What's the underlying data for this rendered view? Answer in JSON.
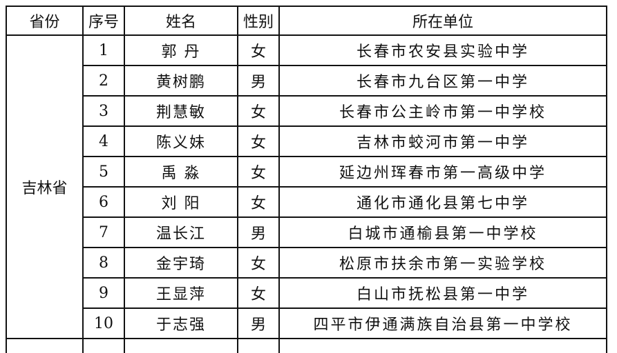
{
  "headers": [
    "省份",
    "序号",
    "姓名",
    "性别",
    "所在单位"
  ],
  "province": "吉林省",
  "rows": [
    {
      "no": "1",
      "name": "郭 丹",
      "gender": "女",
      "unit": "长春市农安县实验中学"
    },
    {
      "no": "2",
      "name": "黄树鹏",
      "gender": "男",
      "unit": "长春市九台区第一中学"
    },
    {
      "no": "3",
      "name": "荆慧敏",
      "gender": "女",
      "unit": "长春市公主岭市第一中学校"
    },
    {
      "no": "4",
      "name": "陈义妹",
      "gender": "女",
      "unit": "吉林市蛟河市第一中学"
    },
    {
      "no": "5",
      "name": "禹 淼",
      "gender": "女",
      "unit": "延边州珲春市第一高级中学"
    },
    {
      "no": "6",
      "name": "刘 阳",
      "gender": "女",
      "unit": "通化市通化县第七中学"
    },
    {
      "no": "7",
      "name": "温长江",
      "gender": "男",
      "unit": "白城市通榆县第一中学校"
    },
    {
      "no": "8",
      "name": "金宇琦",
      "gender": "女",
      "unit": "松原市扶余市第一实验学校"
    },
    {
      "no": "9",
      "name": "王显萍",
      "gender": "女",
      "unit": "白山市抚松县第一中学"
    },
    {
      "no": "10",
      "name": "于志强",
      "gender": "男",
      "unit": "四平市伊通满族自治县第一中学校"
    }
  ]
}
